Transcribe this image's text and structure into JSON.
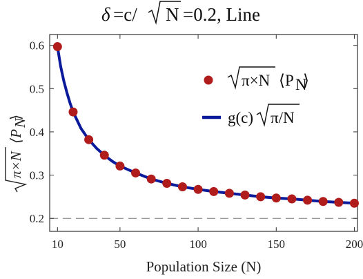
{
  "chart_data": {
    "type": "scatter",
    "title": {
      "delta": "δ",
      "eq": "=c/",
      "root_arg": "N",
      "value": "=0.2, Line"
    },
    "xlabel": "Population Size (N)",
    "ylabel": {
      "root_arg": "π×N",
      "rest": "⟨P",
      "sub": "N",
      "close": "⟩"
    },
    "xlim": [
      5,
      202
    ],
    "ylim": [
      0.17,
      0.625
    ],
    "x_ticks": [
      10,
      50,
      100,
      150,
      200
    ],
    "x_tick_labels": [
      "10",
      "50",
      "100",
      "150",
      "200"
    ],
    "y_ticks": [
      0.2,
      0.3,
      0.4,
      0.5,
      0.6
    ],
    "y_tick_labels": [
      "0.2",
      "0.3",
      "0.4",
      "0.5",
      "0.6"
    ],
    "reference_line": {
      "y": 0.2,
      "style": "dashed"
    },
    "series": [
      {
        "kind": "points",
        "color": "#b01c1c",
        "x": [
          10,
          20,
          30,
          40,
          50,
          60,
          70,
          80,
          90,
          100,
          110,
          120,
          130,
          140,
          150,
          160,
          170,
          180,
          190,
          200
        ],
        "y": [
          0.597,
          0.446,
          0.382,
          0.346,
          0.321,
          0.305,
          0.291,
          0.281,
          0.273,
          0.267,
          0.262,
          0.258,
          0.254,
          0.25,
          0.247,
          0.245,
          0.242,
          0.239,
          0.237,
          0.235
        ]
      },
      {
        "kind": "line",
        "color": "#0a1a9a",
        "x": [
          10,
          12,
          14,
          16,
          18,
          20,
          25,
          30,
          35,
          40,
          45,
          50,
          60,
          70,
          80,
          90,
          100,
          110,
          120,
          130,
          140,
          150,
          160,
          170,
          180,
          190,
          200
        ],
        "y": [
          0.597,
          0.552,
          0.518,
          0.491,
          0.467,
          0.446,
          0.408,
          0.382,
          0.362,
          0.346,
          0.332,
          0.321,
          0.305,
          0.291,
          0.281,
          0.273,
          0.267,
          0.262,
          0.258,
          0.254,
          0.25,
          0.247,
          0.245,
          0.242,
          0.239,
          0.237,
          0.235
        ]
      }
    ],
    "legend": {
      "placement": "top-right",
      "points_entry": {
        "root_arg": "π×N",
        "rest": "⟨P",
        "sub": "N",
        "close": "⟩"
      },
      "line_entry": {
        "prefix": "g(c)",
        "root_arg": "π/N"
      }
    }
  }
}
